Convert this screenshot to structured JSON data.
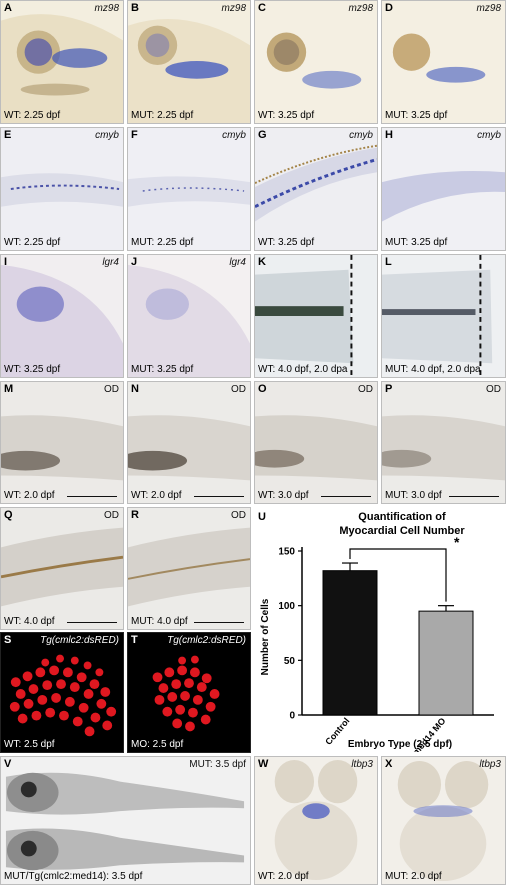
{
  "panels": {
    "A": {
      "letter": "A",
      "gene": "mz98",
      "caption": "WT: 2.25 dpf"
    },
    "B": {
      "letter": "B",
      "gene": "mz98",
      "caption": "MUT: 2.25 dpf"
    },
    "C": {
      "letter": "C",
      "gene": "mz98",
      "caption": "WT: 3.25 dpf"
    },
    "D": {
      "letter": "D",
      "gene": "mz98",
      "caption": "MUT: 3.25 dpf"
    },
    "E": {
      "letter": "E",
      "gene": "cmyb",
      "caption": "WT: 2.25 dpf"
    },
    "F": {
      "letter": "F",
      "gene": "cmyb",
      "caption": "MUT: 2.25 dpf"
    },
    "G": {
      "letter": "G",
      "gene": "cmyb",
      "caption": "WT: 3.25 dpf"
    },
    "H": {
      "letter": "H",
      "gene": "cmyb",
      "caption": "MUT: 3.25 dpf"
    },
    "I": {
      "letter": "I",
      "gene": "lgr4",
      "caption": "WT: 3.25 dpf"
    },
    "J": {
      "letter": "J",
      "gene": "lgr4",
      "caption": "MUT: 3.25 dpf"
    },
    "K": {
      "letter": "K",
      "caption": "WT: 4.0 dpf, 2.0 dpa"
    },
    "L": {
      "letter": "L",
      "caption": "MUT: 4.0 dpf, 2.0 dpa"
    },
    "M": {
      "letter": "M",
      "gene": "OD",
      "caption": "WT: 2.0 dpf"
    },
    "N": {
      "letter": "N",
      "gene": "OD",
      "caption": "WT: 2.0 dpf"
    },
    "O": {
      "letter": "O",
      "gene": "OD",
      "caption": "WT: 3.0 dpf"
    },
    "P": {
      "letter": "P",
      "gene": "OD",
      "caption": "MUT: 3.0 dpf"
    },
    "Q": {
      "letter": "Q",
      "gene": "OD",
      "caption": "WT: 4.0 dpf"
    },
    "R": {
      "letter": "R",
      "gene": "OD",
      "caption": "MUT: 4.0 dpf"
    },
    "S": {
      "letter": "S",
      "gene": "Tg(cmlc2:dsRED)",
      "caption": "WT: 2.5 dpf"
    },
    "T": {
      "letter": "T",
      "gene": "Tg(cmlc2:dsRED)",
      "caption": "MO: 2.5 dpf"
    },
    "V": {
      "letter": "V",
      "gene": "MUT: 3.5 dpf",
      "caption": "MUT/Tg(cmlc2:med14): 3.5 dpf"
    },
    "W": {
      "letter": "W",
      "gene": "ltbp3",
      "caption": "WT: 2.0 dpf"
    },
    "X": {
      "letter": "X",
      "gene": "ltbp3",
      "caption": "MUT: 2.0 dpf"
    }
  },
  "chart_data": {
    "type": "bar",
    "panel_letter": "U",
    "title": "Quantification of Myocardial Cell Number",
    "title_line1": "Quantification of",
    "title_line2": "Myocardial Cell Number",
    "categories": [
      "Control",
      "med14 MO"
    ],
    "values": [
      132,
      95
    ],
    "errors": [
      7,
      5
    ],
    "bar_colors": [
      "#111111",
      "#a9a9a9"
    ],
    "xlabel": "Embryo Type (2.5 dpf)",
    "ylabel": "Number of Cells",
    "ylim": [
      0,
      150
    ],
    "yticks": [
      "0",
      "50",
      "100",
      "150"
    ],
    "significance": "*"
  }
}
